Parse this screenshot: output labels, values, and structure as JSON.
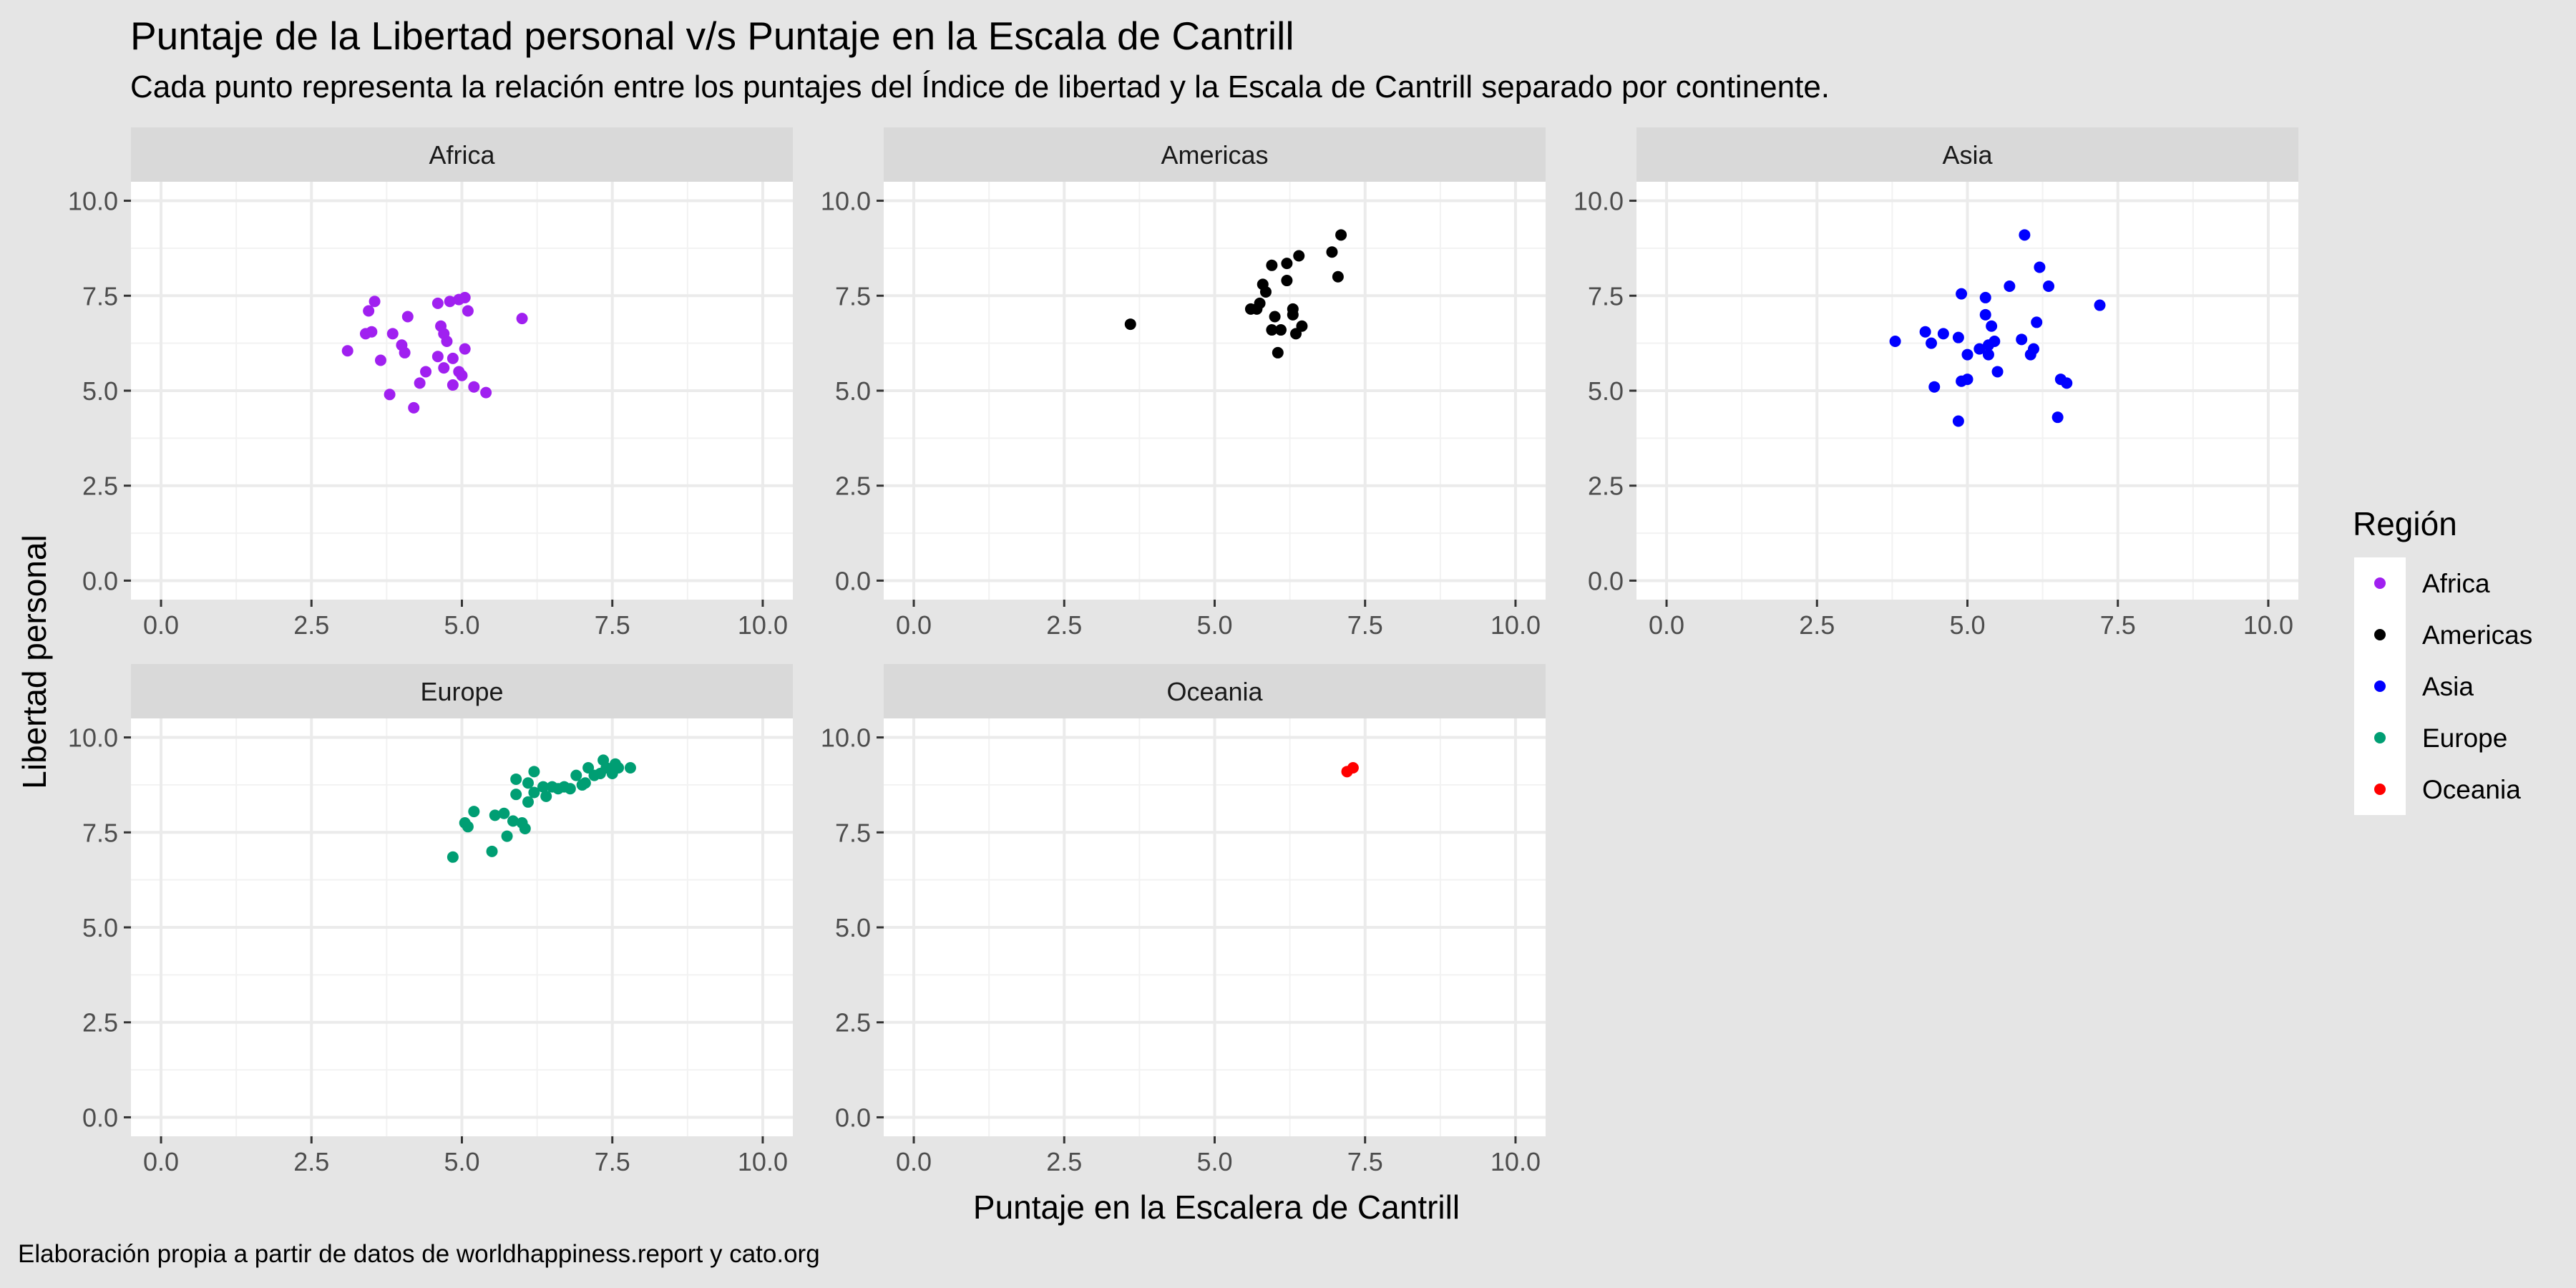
{
  "title": "Puntaje de la Libertad personal v/s Puntaje en la Escala de Cantrill",
  "subtitle": "Cada punto representa la relación entre los puntajes del Índice de libertad y la Escala de Cantrill separado por continente.",
  "caption": "Elaboración propia a partir de datos de worldhappiness.report y cato.org",
  "chart_data": {
    "type": "scatter",
    "title": "Puntaje de la Libertad personal v/s Puntaje en la Escala de Cantrill",
    "subtitle": "Cada punto representa la relación entre los puntajes del Índice de libertad y la Escala de Cantrill separado por continente.",
    "xlabel": "Puntaje en la Escalera de Cantrill",
    "ylabel": "Libertad personal",
    "xlim": [
      0,
      10
    ],
    "ylim": [
      0,
      10
    ],
    "xticks": [
      "0.0",
      "2.5",
      "5.0",
      "7.5",
      "10.0"
    ],
    "yticks": [
      "0.0",
      "2.5",
      "5.0",
      "7.5",
      "10.0"
    ],
    "grid": true,
    "facet_by": "Región",
    "legend": {
      "title": "Región",
      "position": "right",
      "entries": [
        "Africa",
        "Americas",
        "Asia",
        "Europe",
        "Oceania"
      ]
    },
    "series": [
      {
        "name": "Africa",
        "color": "#a020f0",
        "points": [
          [
            3.1,
            6.05
          ],
          [
            3.4,
            6.5
          ],
          [
            3.45,
            7.1
          ],
          [
            3.55,
            7.35
          ],
          [
            3.5,
            6.55
          ],
          [
            3.65,
            5.8
          ],
          [
            3.8,
            4.9
          ],
          [
            3.85,
            6.5
          ],
          [
            4.0,
            6.2
          ],
          [
            4.05,
            6.0
          ],
          [
            4.1,
            6.95
          ],
          [
            4.2,
            4.55
          ],
          [
            4.3,
            5.2
          ],
          [
            4.4,
            5.5
          ],
          [
            4.6,
            7.3
          ],
          [
            4.65,
            6.7
          ],
          [
            4.6,
            5.9
          ],
          [
            4.7,
            6.5
          ],
          [
            4.75,
            6.3
          ],
          [
            4.7,
            5.6
          ],
          [
            4.8,
            7.35
          ],
          [
            4.85,
            5.15
          ],
          [
            4.85,
            5.85
          ],
          [
            4.95,
            7.4
          ],
          [
            4.95,
            5.5
          ],
          [
            5.0,
            5.4
          ],
          [
            5.05,
            7.45
          ],
          [
            5.05,
            6.1
          ],
          [
            5.1,
            7.1
          ],
          [
            5.2,
            5.1
          ],
          [
            5.4,
            4.95
          ],
          [
            6.0,
            6.9
          ]
        ]
      },
      {
        "name": "Americas",
        "color": "#000000",
        "points": [
          [
            3.6,
            6.75
          ],
          [
            5.6,
            7.15
          ],
          [
            5.7,
            7.15
          ],
          [
            5.75,
            7.3
          ],
          [
            5.8,
            7.8
          ],
          [
            5.85,
            7.6
          ],
          [
            5.95,
            8.3
          ],
          [
            5.95,
            6.6
          ],
          [
            6.0,
            6.95
          ],
          [
            6.05,
            6.0
          ],
          [
            6.1,
            6.6
          ],
          [
            6.2,
            7.9
          ],
          [
            6.2,
            8.35
          ],
          [
            6.3,
            7.15
          ],
          [
            6.3,
            7.0
          ],
          [
            6.35,
            6.5
          ],
          [
            6.4,
            8.55
          ],
          [
            6.45,
            6.7
          ],
          [
            6.95,
            8.65
          ],
          [
            7.05,
            8.0
          ],
          [
            7.1,
            9.1
          ]
        ]
      },
      {
        "name": "Asia",
        "color": "#0000ff",
        "points": [
          [
            3.8,
            6.3
          ],
          [
            4.3,
            6.55
          ],
          [
            4.4,
            6.25
          ],
          [
            4.45,
            5.1
          ],
          [
            4.6,
            6.5
          ],
          [
            4.85,
            6.4
          ],
          [
            4.85,
            4.2
          ],
          [
            4.9,
            7.55
          ],
          [
            4.9,
            5.25
          ],
          [
            5.0,
            5.95
          ],
          [
            5.0,
            5.3
          ],
          [
            5.2,
            6.1
          ],
          [
            5.3,
            7.45
          ],
          [
            5.3,
            7.0
          ],
          [
            5.35,
            6.2
          ],
          [
            5.35,
            5.95
          ],
          [
            5.4,
            6.7
          ],
          [
            5.45,
            6.3
          ],
          [
            5.5,
            5.5
          ],
          [
            5.7,
            7.75
          ],
          [
            5.9,
            6.35
          ],
          [
            5.95,
            9.1
          ],
          [
            6.05,
            5.95
          ],
          [
            6.1,
            6.1
          ],
          [
            6.15,
            6.8
          ],
          [
            6.2,
            8.25
          ],
          [
            6.35,
            7.75
          ],
          [
            6.5,
            4.3
          ],
          [
            6.55,
            5.3
          ],
          [
            6.65,
            5.2
          ],
          [
            7.2,
            7.25
          ]
        ]
      },
      {
        "name": "Europe",
        "color": "#009e73",
        "points": [
          [
            4.85,
            6.85
          ],
          [
            5.05,
            7.75
          ],
          [
            5.1,
            7.65
          ],
          [
            5.2,
            8.05
          ],
          [
            5.5,
            7.0
          ],
          [
            5.55,
            7.95
          ],
          [
            5.7,
            8.0
          ],
          [
            5.75,
            7.4
          ],
          [
            5.85,
            7.8
          ],
          [
            5.9,
            8.5
          ],
          [
            5.9,
            8.9
          ],
          [
            6.0,
            7.75
          ],
          [
            6.05,
            7.6
          ],
          [
            6.1,
            8.8
          ],
          [
            6.1,
            8.3
          ],
          [
            6.2,
            9.1
          ],
          [
            6.2,
            8.55
          ],
          [
            6.35,
            8.7
          ],
          [
            6.4,
            8.45
          ],
          [
            6.5,
            8.7
          ],
          [
            6.6,
            8.65
          ],
          [
            6.7,
            8.7
          ],
          [
            6.8,
            8.65
          ],
          [
            6.9,
            9.0
          ],
          [
            7.0,
            8.75
          ],
          [
            7.05,
            8.8
          ],
          [
            7.1,
            9.2
          ],
          [
            7.2,
            9.0
          ],
          [
            7.3,
            9.05
          ],
          [
            7.35,
            9.4
          ],
          [
            7.4,
            9.2
          ],
          [
            7.5,
            9.05
          ],
          [
            7.55,
            9.3
          ],
          [
            7.6,
            9.2
          ],
          [
            7.8,
            9.2
          ]
        ]
      },
      {
        "name": "Oceania",
        "color": "#ff0000",
        "points": [
          [
            7.2,
            9.1
          ],
          [
            7.3,
            9.2
          ]
        ]
      }
    ]
  }
}
